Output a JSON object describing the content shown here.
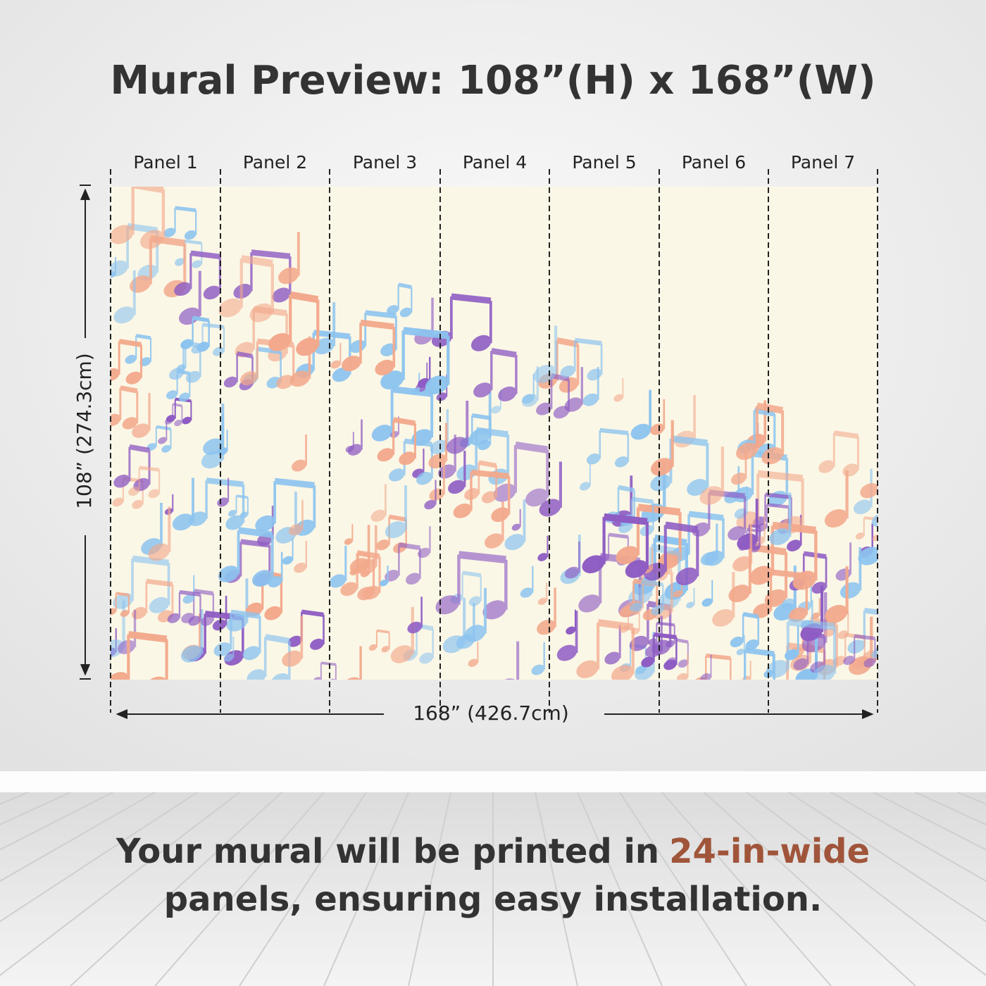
{
  "header": {
    "title": "Mural Preview: 108”(H) x 168”(W)"
  },
  "panels": [
    "Panel 1",
    "Panel 2",
    "Panel 3",
    "Panel 4",
    "Panel 5",
    "Panel 6",
    "Panel 7"
  ],
  "dimensions": {
    "height": "108” (274.3cm)",
    "width": "168” (426.7cm)"
  },
  "footer": {
    "line1": "Your mural will be printed in",
    "highlight": "24-in-wide",
    "line2": "panels, ensuring easy installation."
  }
}
